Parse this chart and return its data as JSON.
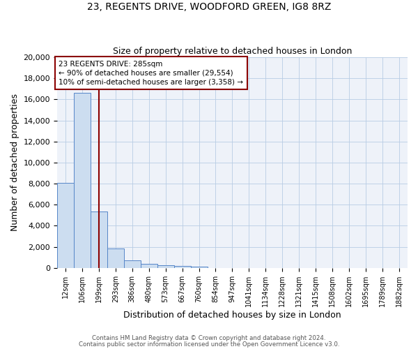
{
  "title1": "23, REGENTS DRIVE, WOODFORD GREEN, IG8 8RZ",
  "title2": "Size of property relative to detached houses in London",
  "xlabel": "Distribution of detached houses by size in London",
  "ylabel": "Number of detached properties",
  "footnote1": "Contains HM Land Registry data © Crown copyright and database right 2024.",
  "footnote2": "Contains public sector information licensed under the Open Government Licence v3.0.",
  "bin_labels": [
    "12sqm",
    "106sqm",
    "199sqm",
    "293sqm",
    "386sqm",
    "480sqm",
    "573sqm",
    "667sqm",
    "760sqm",
    "854sqm",
    "947sqm",
    "1041sqm",
    "1134sqm",
    "1228sqm",
    "1321sqm",
    "1415sqm",
    "1508sqm",
    "1602sqm",
    "1695sqm",
    "1789sqm",
    "1882sqm"
  ],
  "bar_heights": [
    8050,
    16600,
    5350,
    1850,
    700,
    380,
    220,
    150,
    130,
    0,
    0,
    0,
    0,
    0,
    0,
    0,
    0,
    0,
    0,
    0,
    0
  ],
  "bar_color": "#ccddf0",
  "bar_edge_color": "#5585c8",
  "vline_x": 2,
  "vline_color": "#8B0000",
  "ylim": [
    0,
    20000
  ],
  "yticks": [
    0,
    2000,
    4000,
    6000,
    8000,
    10000,
    12000,
    14000,
    16000,
    18000,
    20000
  ],
  "annotation_title": "23 REGENTS DRIVE: 285sqm",
  "annotation_line1": "← 90% of detached houses are smaller (29,554)",
  "annotation_line2": "10% of semi-detached houses are larger (3,358) →",
  "annotation_box_color": "#ffffff",
  "annotation_box_edge": "#8B0000",
  "bg_color": "#eef2f9"
}
